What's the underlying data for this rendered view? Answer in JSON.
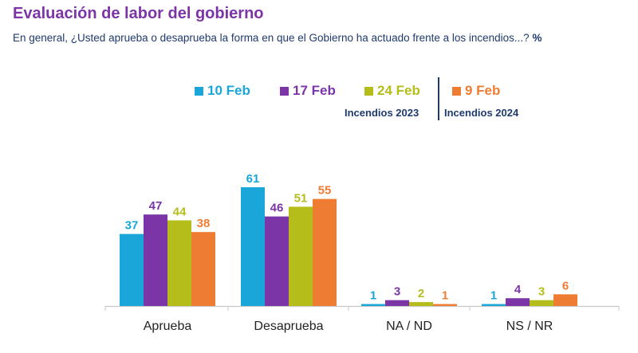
{
  "header": {
    "title": "Evaluación de labor del gobierno",
    "subtitle": "En general, ¿Usted aprueba o desaprueba la forma en que el Gobierno ha actuado frente a los incendios...?",
    "unit": "%"
  },
  "legend": {
    "groups": [
      "Incendios 2023",
      "Incendios 2024"
    ]
  },
  "colors": {
    "title": "#7b35a6",
    "text": "#1f3a6e",
    "series": [
      "#1aa6d9",
      "#7b35a6",
      "#b5bd1a",
      "#ee7d33"
    ]
  },
  "chart_data": {
    "type": "bar",
    "title": "Evaluación de labor del gobierno",
    "categories": [
      "Aprueba",
      "Desaprueba",
      "NA / ND",
      "NS / NR"
    ],
    "series": [
      {
        "name": "10 Feb",
        "values": [
          37,
          61,
          1,
          1
        ]
      },
      {
        "name": "17 Feb",
        "values": [
          47,
          46,
          3,
          4
        ]
      },
      {
        "name": "24 Feb",
        "values": [
          44,
          51,
          2,
          3
        ]
      },
      {
        "name": "9 Feb",
        "values": [
          38,
          55,
          1,
          6
        ]
      }
    ],
    "ylim": [
      0,
      61
    ],
    "grid": false,
    "legend_position": "top"
  }
}
